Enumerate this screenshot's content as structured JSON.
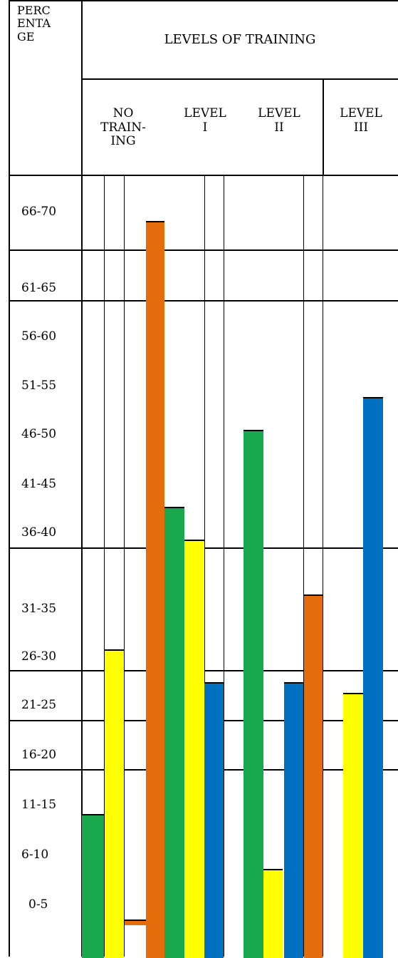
{
  "chart_data": {
    "type": "bar",
    "corner_header": [
      "PERC",
      "ENTA",
      "GE"
    ],
    "group_header": "LEVELS OF TRAINING",
    "categories": [
      {
        "lines": [
          "NO",
          "TRAIN-",
          "ING"
        ]
      },
      {
        "lines": [
          "LEVEL",
          "I"
        ]
      },
      {
        "lines": [
          "LEVEL",
          "II"
        ]
      },
      {
        "lines": [
          "LEVEL",
          "III"
        ]
      }
    ],
    "y_ticks": [
      "66-70",
      "61-65",
      "56-60",
      "51-55",
      "46-50",
      "41-45",
      "36-40",
      "31-35",
      "26-30",
      "21-25",
      "16-20",
      "11-15",
      "6-10",
      "0-5"
    ],
    "series_colors": {
      "green": "#1aa84f",
      "yellow": "#ffff00",
      "orange": "#e46c0a",
      "blue": "#0070c0"
    },
    "bars": [
      {
        "category": "NO TRAINING",
        "color": "green",
        "value": 13
      },
      {
        "category": "NO TRAINING",
        "color": "yellow",
        "value": 28
      },
      {
        "category": "NO TRAINING",
        "color": "orange",
        "value": 1
      },
      {
        "category": "NO TRAINING",
        "color": "orange",
        "value": 67
      },
      {
        "category": "LEVEL I",
        "color": "green",
        "value": 41
      },
      {
        "category": "LEVEL I",
        "color": "yellow",
        "value": 38
      },
      {
        "category": "LEVEL I",
        "color": "blue",
        "value": 25
      },
      {
        "category": "LEVEL II",
        "color": "green",
        "value": 48
      },
      {
        "category": "LEVEL II",
        "color": "yellow",
        "value": 8
      },
      {
        "category": "LEVEL II",
        "color": "blue",
        "value": 25
      },
      {
        "category": "LEVEL II",
        "color": "orange",
        "value": 33
      },
      {
        "category": "LEVEL III",
        "color": "yellow",
        "value": 24
      },
      {
        "category": "LEVEL III",
        "color": "blue",
        "value": 51
      }
    ]
  }
}
